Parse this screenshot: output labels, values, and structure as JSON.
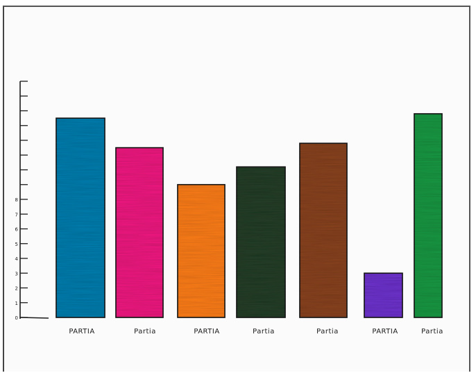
{
  "chart_data": {
    "type": "bar",
    "categories": [
      "PARTIA",
      "Partia",
      "PARTIA",
      "Partia",
      "Partia",
      "PARTIA",
      "Partia"
    ],
    "values": [
      13.5,
      11.5,
      9,
      10.2,
      11.8,
      3,
      13.8
    ],
    "colors": [
      "#0a7fb0",
      "#f21e82",
      "#ff7f1a",
      "#27402a",
      "#8a4523",
      "#6f36cf",
      "#1f9a45"
    ],
    "ytick_labels": [
      "0",
      "1",
      "2",
      "3",
      "4",
      "5",
      "6",
      "7",
      "8",
      "",
      "",
      "",
      "",
      "",
      "",
      "",
      ""
    ],
    "ylim": [
      0,
      16
    ],
    "grid": false,
    "title": "",
    "xlabel": "",
    "ylabel": ""
  }
}
